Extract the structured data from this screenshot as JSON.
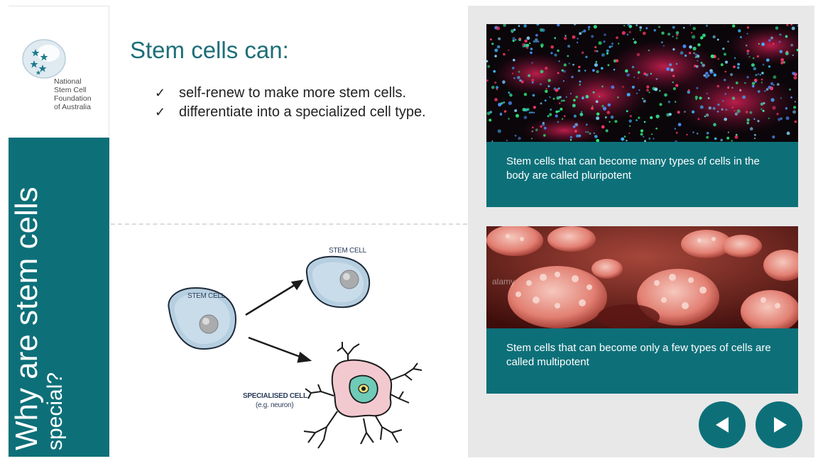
{
  "logo": {
    "org_name": "National\nStem Cell\nFoundation\nof Australia"
  },
  "sidebar": {
    "title_line1": "Why are stem cells",
    "title_line2": "special?"
  },
  "main": {
    "heading": "Stem cells can:",
    "bullets": [
      {
        "check": "✓",
        "text": "self-renew to make more stem cells."
      },
      {
        "check": "✓",
        "text": "differentiate into a specialized cell type."
      }
    ]
  },
  "diagram": {
    "label_source": "STEM CELL",
    "label_top": "STEM CELL",
    "label_special": "SPECIALISED CELL",
    "label_example": "(e.g. neuron)"
  },
  "cards": [
    {
      "caption": "Stem cells that can become many types of cells in the body are called pluripotent"
    },
    {
      "caption": "Stem cells that can become only a few types of cells are called multipotent",
      "watermark": "alamy"
    }
  ],
  "nav": {
    "prev_icon": "triangle-left-icon",
    "next_icon": "triangle-right-icon"
  },
  "colors": {
    "teal": "#0d7079",
    "heading": "#1d6e77",
    "panel_bg": "#e8e8e8"
  }
}
